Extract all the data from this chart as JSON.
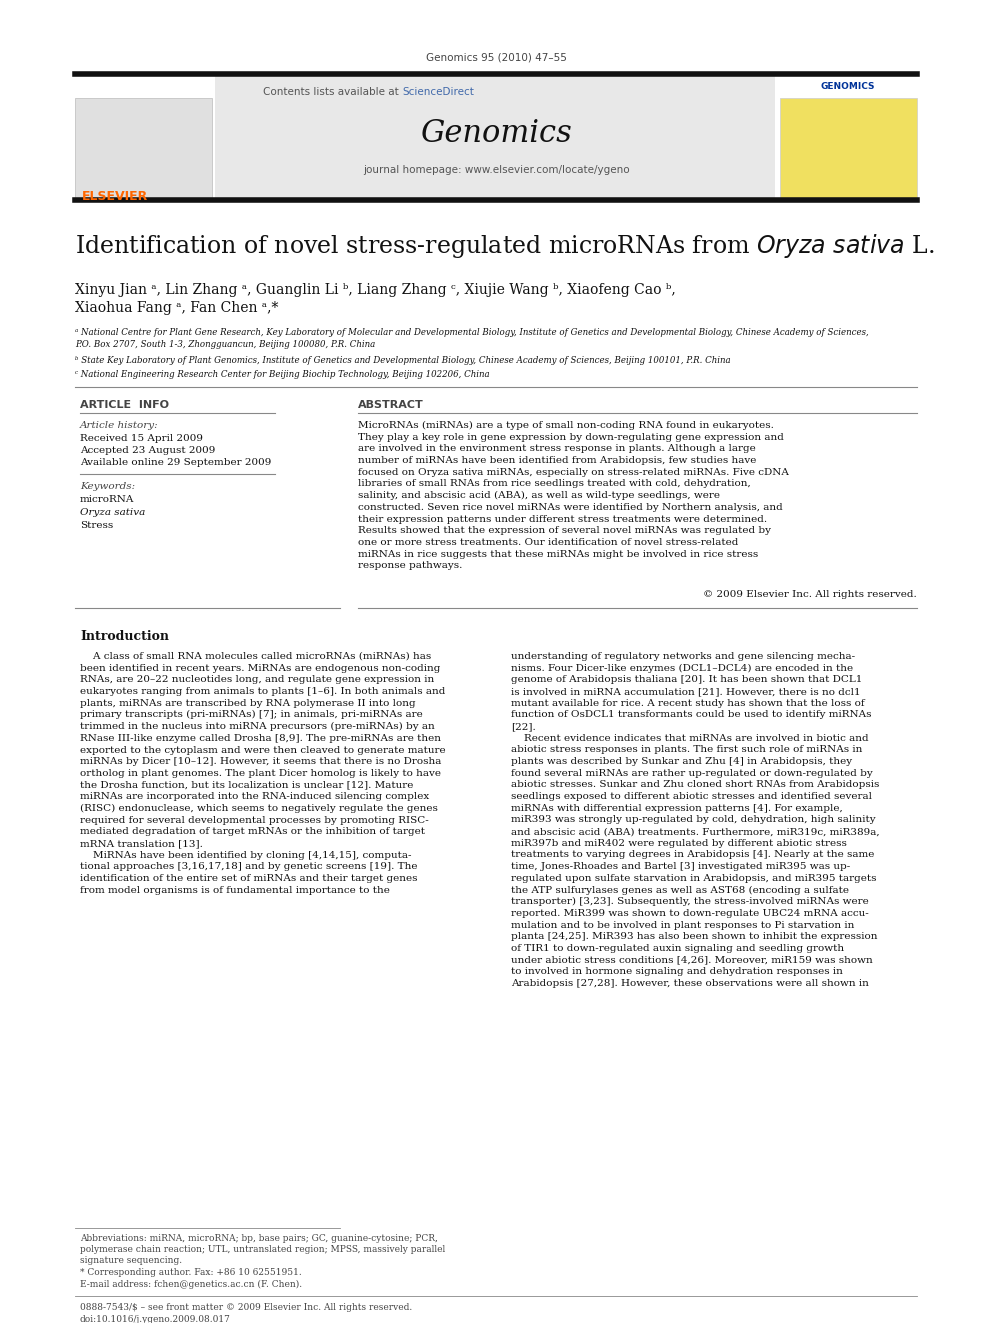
{
  "journal_line": "Genomics 95 (2010) 47–55",
  "sciencedirect_color": "#4169aa",
  "journal_name": "Genomics",
  "journal_homepage": "journal homepage: www.elsevier.com/locate/ygeno",
  "affiliation_a": "ᵃ National Centre for Plant Gene Research, Key Laboratory of Molecular and Developmental Biology, Institute of Genetics and Developmental Biology, Chinese Academy of Sciences,\nP.O. Box 2707, South 1-3, Zhongguancun, Beijing 100080, P.R. China",
  "affiliation_b": "ᵇ State Key Laboratory of Plant Genomics, Institute of Genetics and Developmental Biology, Chinese Academy of Sciences, Beijing 100101, P.R. China",
  "affiliation_c": "ᶜ National Engineering Research Center for Beijing Biochip Technology, Beijing 102206, China",
  "article_info_header": "ARTICLE  INFO",
  "abstract_header": "ABSTRACT",
  "abstract_text": "MicroRNAs (miRNAs) are a type of small non-coding RNA found in eukaryotes. They play a key role in gene expression by down-regulating gene expression and are involved in the environment stress response in plants. Although a large number of miRNAs have been identified from Arabidopsis, few studies have focused on Oryza sativa miRNAs, especially on stress-related miRNAs. Five cDNA libraries of small RNAs from rice seedlings treated with cold, dehydration, salinity, and abscisic acid (ABA), as well as wild-type seedlings, were constructed. Seven rice novel miRNAs were identified by Northern analysis, and their expression patterns under different stress treatments were determined. Results showed that the expression of several novel miRNAs was regulated by one or more stress treatments. Our identification of novel stress-related miRNAs in rice suggests that these miRNAs might be involved in rice stress response pathways.",
  "copyright": "© 2009 Elsevier Inc. All rights reserved.",
  "bottom_line1": "0888-7543/$ – see front matter © 2009 Elsevier Inc. All rights reserved.",
  "bottom_line2": "doi:10.1016/j.ygeno.2009.08.017",
  "bg_color": "#ffffff",
  "thick_rule_color": "#111111",
  "sciencedirect_blue": "#4169aa",
  "elsevier_color": "#ff6600",
  "intro_col1_lines": [
    "    A class of small RNA molecules called microRNAs (miRNAs) has",
    "been identified in recent years. MiRNAs are endogenous non-coding",
    "RNAs, are 20–22 nucleotides long, and regulate gene expression in",
    "eukaryotes ranging from animals to plants [1–6]. In both animals and",
    "plants, miRNAs are transcribed by RNA polymerase II into long",
    "primary transcripts (pri-miRNAs) [7]; in animals, pri-miRNAs are",
    "trimmed in the nucleus into miRNA precursors (pre-miRNAs) by an",
    "RNase III-like enzyme called Drosha [8,9]. The pre-miRNAs are then",
    "exported to the cytoplasm and were then cleaved to generate mature",
    "miRNAs by Dicer [10–12]. However, it seems that there is no Drosha",
    "ortholog in plant genomes. The plant Dicer homolog is likely to have",
    "the Drosha function, but its localization is unclear [12]. Mature",
    "miRNAs are incorporated into the RNA-induced silencing complex",
    "(RISC) endonuclease, which seems to negatively regulate the genes",
    "required for several developmental processes by promoting RISC-",
    "mediated degradation of target mRNAs or the inhibition of target",
    "mRNA translation [13].",
    "    MiRNAs have been identified by cloning [4,14,15], computa-",
    "tional approaches [3,16,17,18] and by genetic screens [19]. The",
    "identification of the entire set of miRNAs and their target genes",
    "from model organisms is of fundamental importance to the"
  ],
  "intro_col2_lines": [
    "understanding of regulatory networks and gene silencing mecha-",
    "nisms. Four Dicer-like enzymes (DCL1–DCL4) are encoded in the",
    "genome of Arabidopsis thaliana [20]. It has been shown that DCL1",
    "is involved in miRNA accumulation [21]. However, there is no dcl1",
    "mutant available for rice. A recent study has shown that the loss of",
    "function of OsDCL1 transformants could be used to identify miRNAs",
    "[22].",
    "    Recent evidence indicates that miRNAs are involved in biotic and",
    "abiotic stress responses in plants. The first such role of miRNAs in",
    "plants was described by Sunkar and Zhu [4] in Arabidopsis, they",
    "found several miRNAs are rather up-regulated or down-regulated by",
    "abiotic stresses. Sunkar and Zhu cloned short RNAs from Arabidopsis",
    "seedlings exposed to different abiotic stresses and identified several",
    "miRNAs with differential expression patterns [4]. For example,",
    "miR393 was strongly up-regulated by cold, dehydration, high salinity",
    "and abscisic acid (ABA) treatments. Furthermore, miR319c, miR389a,",
    "miR397b and miR402 were regulated by different abiotic stress",
    "treatments to varying degrees in Arabidopsis [4]. Nearly at the same",
    "time, Jones-Rhoades and Bartel [3] investigated miR395 was up-",
    "regulated upon sulfate starvation in Arabidopsis, and miR395 targets",
    "the ATP sulfurylases genes as well as AST68 (encoding a sulfate",
    "transporter) [3,23]. Subsequently, the stress-involved miRNAs were",
    "reported. MiR399 was shown to down-regulate UBC24 mRNA accu-",
    "mulation and to be involved in plant responses to Pi starvation in",
    "planta [24,25]. MiR393 has also been shown to inhibit the expression",
    "of TIR1 to down-regulated auxin signaling and seedling growth",
    "under abiotic stress conditions [4,26]. Moreover, miR159 was shown",
    "to involved in hormone signaling and dehydration responses in",
    "Arabidopsis [27,28]. However, these observations were all shown in"
  ],
  "footnote_lines": [
    "Abbreviations: miRNA, microRNA; bp, base pairs; GC, guanine-cytosine; PCR,",
    "polymerase chain reaction; UTL, untranslated region; MPSS, massively parallel",
    "signature sequencing."
  ]
}
